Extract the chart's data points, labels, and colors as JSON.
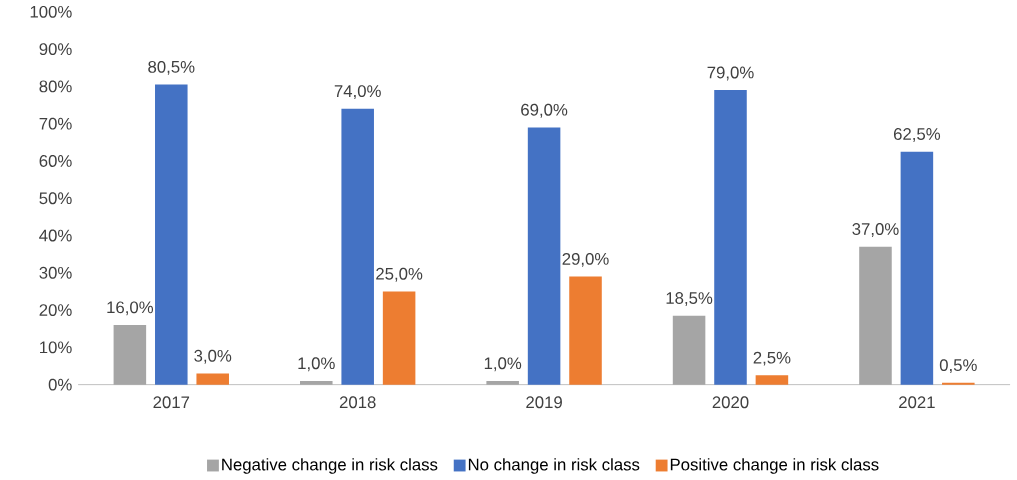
{
  "chart_data": {
    "type": "bar",
    "categories": [
      "2017",
      "2018",
      "2019",
      "2020",
      "2021"
    ],
    "series": [
      {
        "name": "Negative change in risk class",
        "color": "#a5a5a5",
        "values": [
          16.0,
          1.0,
          1.0,
          18.5,
          37.0
        ],
        "value_labels": [
          "16,0%",
          "1,0%",
          "1,0%",
          "18,5%",
          "37,0%"
        ]
      },
      {
        "name": "No change in risk class",
        "color": "#4472c4",
        "values": [
          80.5,
          74.0,
          69.0,
          79.0,
          62.5
        ],
        "value_labels": [
          "80,5%",
          "74,0%",
          "69,0%",
          "79,0%",
          "62,5%"
        ]
      },
      {
        "name": "Positive change in risk class",
        "color": "#ed7d31",
        "values": [
          3.0,
          25.0,
          29.0,
          2.5,
          0.5
        ],
        "value_labels": [
          "3,0%",
          "25,0%",
          "29,0%",
          "2,5%",
          "0,5%"
        ]
      }
    ],
    "ylim": [
      0,
      100
    ],
    "yticks": [
      {
        "value": 0,
        "label": "0%"
      },
      {
        "value": 10,
        "label": "10%"
      },
      {
        "value": 20,
        "label": "20%"
      },
      {
        "value": 30,
        "label": "30%"
      },
      {
        "value": 40,
        "label": "40%"
      },
      {
        "value": 50,
        "label": "50%"
      },
      {
        "value": 60,
        "label": "60%"
      },
      {
        "value": 70,
        "label": "70%"
      },
      {
        "value": 80,
        "label": "80%"
      },
      {
        "value": 90,
        "label": "90%"
      },
      {
        "value": 100,
        "label": "100%"
      }
    ],
    "legend": "bottom"
  }
}
